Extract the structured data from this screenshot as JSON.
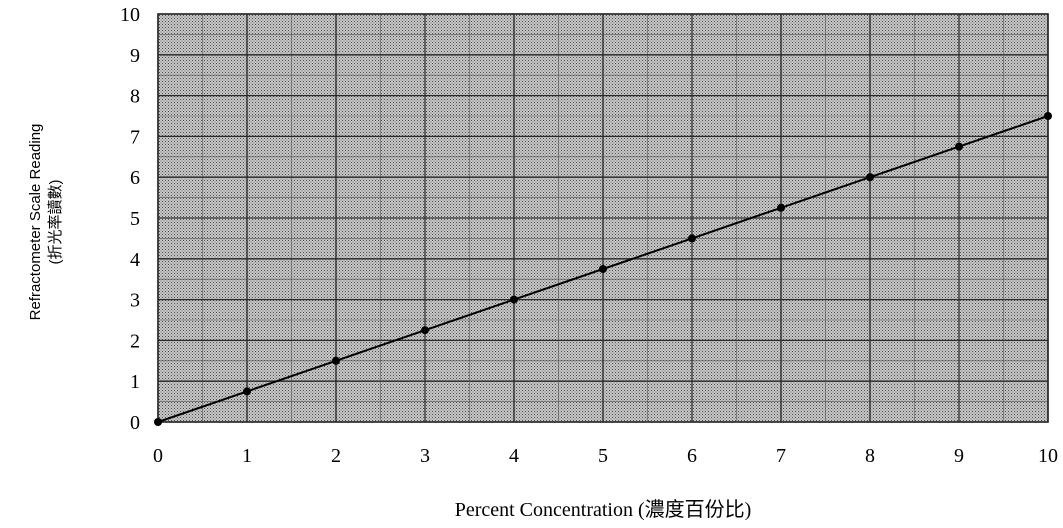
{
  "chart_data": {
    "type": "line",
    "xlabel": "Percent Concentration (濃度百份比)",
    "ylabel_lines": [
      "Refractometer Scale Reading",
      "(折光率讀數)"
    ],
    "xlim": [
      0,
      10
    ],
    "ylim": [
      0,
      10
    ],
    "x_ticks": [
      "0",
      "1",
      "2",
      "3",
      "4",
      "5",
      "6",
      "7",
      "8",
      "9",
      "10"
    ],
    "y_ticks": [
      "0",
      "1",
      "2",
      "3",
      "4",
      "5",
      "6",
      "7",
      "8",
      "9",
      "10"
    ],
    "grid": true,
    "series": [
      {
        "x": [
          0,
          1,
          2,
          3,
          4,
          5,
          6,
          7,
          8,
          9,
          10
        ],
        "y": [
          0,
          0.75,
          1.5,
          2.25,
          3.0,
          3.75,
          4.5,
          5.25,
          6.0,
          6.75,
          7.5
        ]
      }
    ],
    "colors": {
      "plot_bg": "#9a9a9a",
      "grid": "#2a2a2a",
      "line": "#000000"
    }
  }
}
